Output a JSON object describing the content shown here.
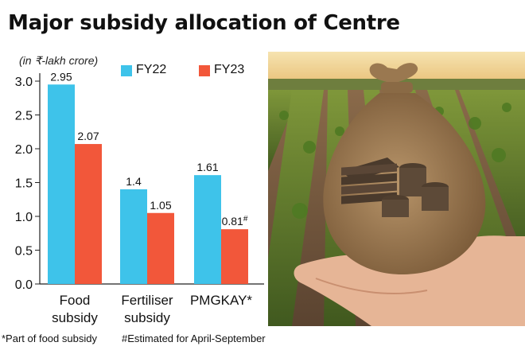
{
  "title": "Major subsidy allocation of Centre",
  "unit_note": "(in ₹-lakh crore)",
  "footnotes": {
    "left": "*Part of food subsidy",
    "right": "#Estimated for April-September"
  },
  "colors": {
    "fy22": "#3ec3ea",
    "fy23": "#f2573a",
    "axis": "#222222"
  },
  "photo": {
    "description_icons": [
      "farmland-icon",
      "money-bag-icon",
      "cash-stack-icon",
      "coins-icon",
      "hand-icon"
    ]
  },
  "chart_data": {
    "type": "bar",
    "title": "Major subsidy allocation of Centre",
    "ylabel": "(in ₹-lakh crore)",
    "ylim": [
      0,
      3.0
    ],
    "yticks": [
      "0.0",
      "0.5",
      "1.0",
      "1.5",
      "2.0",
      "2.5",
      "3.0"
    ],
    "categories": [
      [
        "Food",
        "subsidy"
      ],
      [
        "Fertiliser",
        "subsidy"
      ],
      [
        "PMGKAY*"
      ]
    ],
    "legend_position": "top-right",
    "series": [
      {
        "name": "FY22",
        "values": [
          2.95,
          1.4,
          1.61
        ],
        "labels": [
          "2.95",
          "1.4",
          "1.61"
        ]
      },
      {
        "name": "FY23",
        "values": [
          2.07,
          1.05,
          0.81
        ],
        "labels": [
          "2.07",
          "1.05",
          "0.81#"
        ]
      }
    ]
  }
}
